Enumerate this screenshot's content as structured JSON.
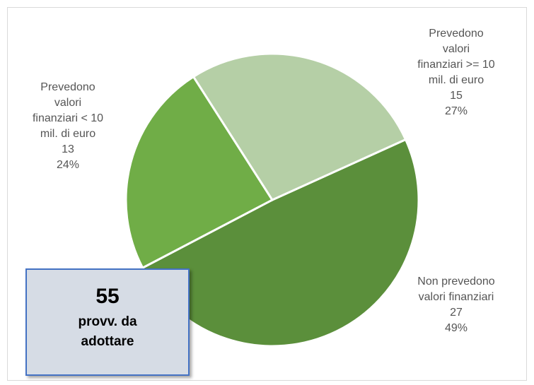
{
  "chart_data": {
    "type": "pie",
    "categories": [
      "Non prevedono\nvalori finanziari",
      "Prevedono\nvalori\nfinanziari < 10\nmil. di euro",
      "Prevedono valori\nfinanziari >= 10\nmil. di euro"
    ],
    "values": [
      27,
      13,
      15
    ],
    "percentages": [
      49,
      24,
      27
    ],
    "percentage_labels": [
      "49%",
      "24%",
      "27%"
    ],
    "colors": [
      "#5b8f3b",
      "#70ad47",
      "#b5cfa6"
    ],
    "box": {
      "value": 55,
      "text": "provv. da\nadottare"
    }
  }
}
